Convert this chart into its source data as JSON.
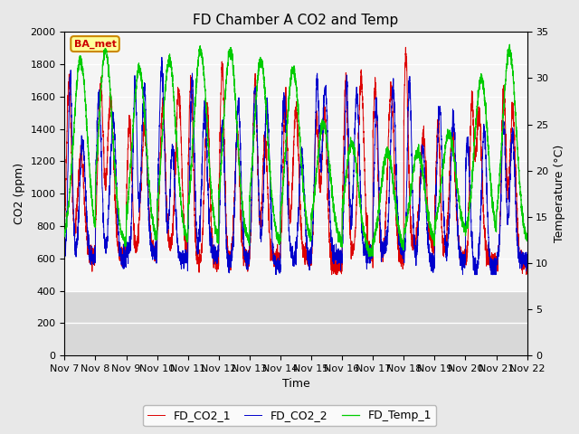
{
  "title": "FD Chamber A CO2 and Temp",
  "xlabel": "Time",
  "ylabel_left": "CO2 (ppm)",
  "ylabel_right": "Temperature (°C)",
  "ylim_left": [
    0,
    2000
  ],
  "ylim_right": [
    0,
    35
  ],
  "yticks_left": [
    0,
    200,
    400,
    600,
    800,
    1000,
    1200,
    1400,
    1600,
    1800,
    2000
  ],
  "yticks_right": [
    0,
    5,
    10,
    15,
    20,
    25,
    30,
    35
  ],
  "xtick_labels": [
    "Nov 7",
    "Nov 8",
    "Nov 9",
    "Nov 10",
    "Nov 11",
    "Nov 12",
    "Nov 13",
    "Nov 14",
    "Nov 15",
    "Nov 16",
    "Nov 17",
    "Nov 18",
    "Nov 19",
    "Nov 20",
    "Nov 21",
    "Nov 22"
  ],
  "annotation_text": "BA_met",
  "line_colors": {
    "FD_CO2_1": "#dd0000",
    "FD_CO2_2": "#0000cc",
    "FD_Temp_1": "#00cc00"
  },
  "legend_labels": [
    "FD_CO2_1",
    "FD_CO2_2",
    "FD_Temp_1"
  ],
  "background_color": "#e8e8e8",
  "plot_bg_color": "#e0e0e0",
  "plot_active_bg": "#f5f5f5",
  "grid_color": "#ffffff",
  "title_fontsize": 11,
  "axis_label_fontsize": 9,
  "tick_fontsize": 8
}
